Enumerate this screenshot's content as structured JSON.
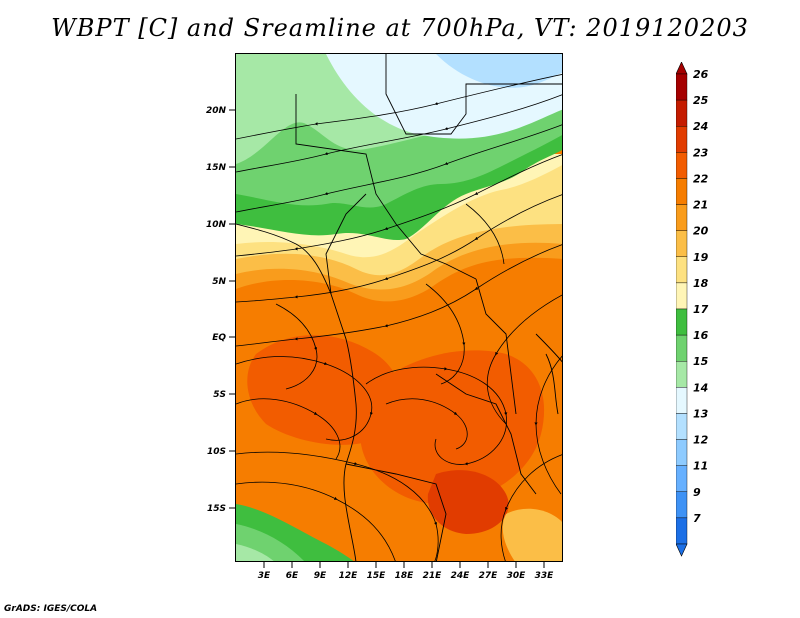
{
  "title": "WBPT [C] and Sreamline at 700hPa, VT: 2019120203",
  "credit": "GrADS: IGES/COLA",
  "map": {
    "y_ticks": [
      "20N",
      "15N",
      "10N",
      "5N",
      "EQ",
      "5S",
      "10S",
      "15S"
    ],
    "x_ticks": [
      "3E",
      "6E",
      "9E",
      "12E",
      "15E",
      "18E",
      "21E",
      "24E",
      "27E",
      "30E",
      "33E"
    ]
  },
  "colorbar": {
    "levels": [
      "26",
      "25",
      "24",
      "23",
      "22",
      "21",
      "20",
      "19",
      "18",
      "17",
      "16",
      "15",
      "14",
      "13",
      "12",
      "11",
      "9",
      "7"
    ],
    "colors": [
      "#a50000",
      "#c41c00",
      "#e13c00",
      "#f25c00",
      "#f67d00",
      "#f99c1c",
      "#fbbe47",
      "#fde181",
      "#fff5b6",
      "#3fbe3f",
      "#6fd26f",
      "#a6e8a6",
      "#e5f8ff",
      "#b3e0ff",
      "#8ecbff",
      "#66b0ff",
      "#3e92f5",
      "#1c6fe6"
    ]
  }
}
